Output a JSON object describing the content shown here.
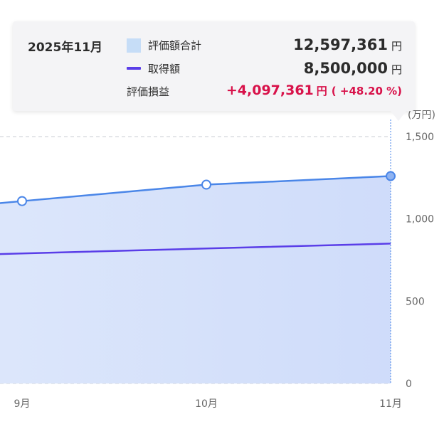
{
  "tooltip": {
    "date": "2025年11月",
    "rows": [
      {
        "label": "評価額合計",
        "value": "12,597,361",
        "unit": "円"
      },
      {
        "label": "取得額",
        "value": "8,500,000",
        "unit": "円"
      },
      {
        "label": "評価損益",
        "value": "+4,097,361",
        "unit": "円",
        "percent": "( +48.20 %)"
      }
    ]
  },
  "chart_data": {
    "type": "area",
    "categories": [
      "9月",
      "10月",
      "11月"
    ],
    "series": [
      {
        "name": "評価額合計",
        "type": "area",
        "values": [
          1108,
          1208,
          1260
        ],
        "color": "#4a86e8",
        "fill": "#d2e0fa"
      },
      {
        "name": "取得額",
        "type": "line",
        "values": [
          790,
          820,
          850
        ],
        "color": "#5a3ee8"
      }
    ],
    "ylim": [
      0,
      1500
    ],
    "yticks": [
      "0",
      "500",
      "1,000",
      "1,500"
    ],
    "ylabel": "(万円)",
    "highlighted_category": "11月",
    "grid": true,
    "legend": "tooltip"
  }
}
